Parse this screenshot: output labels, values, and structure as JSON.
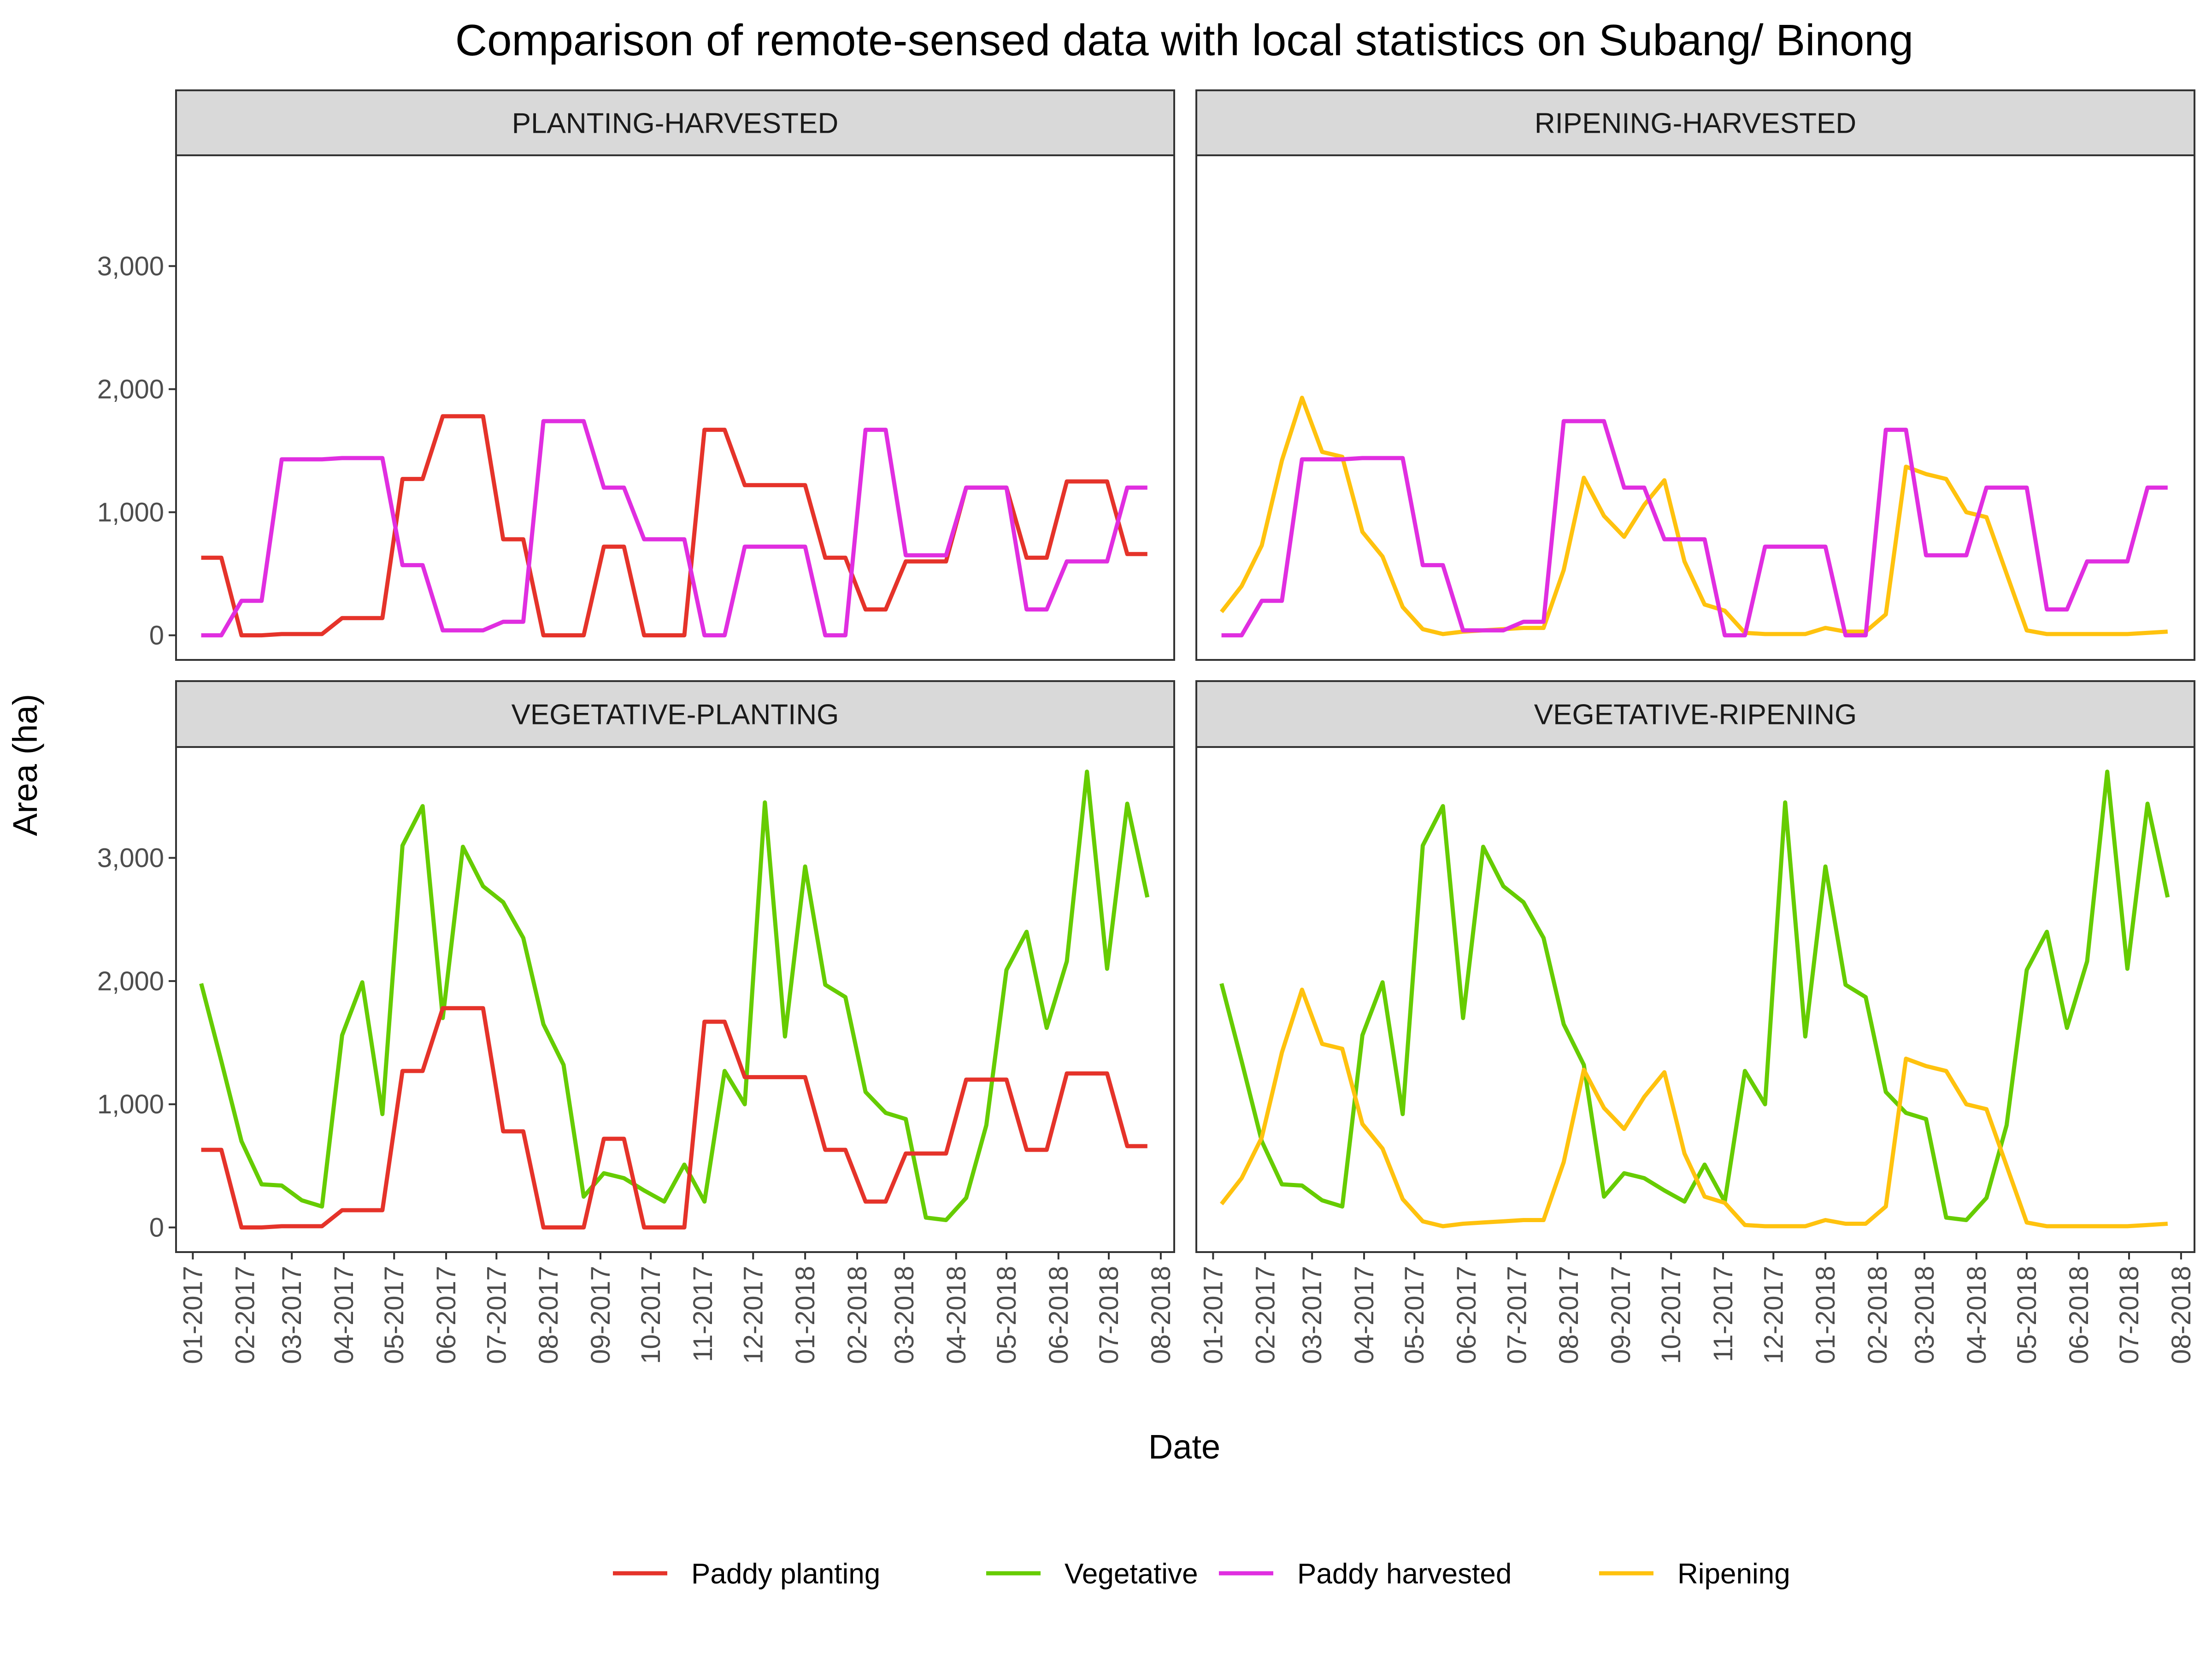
{
  "chart_data": {
    "type": "line",
    "title": "Comparison of remote-sensed data with local statistics on Subang/ Binong",
    "xlabel": "Date",
    "ylabel": "Area (ha)",
    "ylim": [
      -200,
      3900
    ],
    "y_ticks": [
      0,
      1000,
      2000,
      3000
    ],
    "y_tick_labels": [
      "0",
      "1,000",
      "2,000",
      "3,000"
    ],
    "x_ticks": [
      "2017-01-01",
      "2017-02-01",
      "2017-03-01",
      "2017-04-01",
      "2017-05-01",
      "2017-06-01",
      "2017-07-01",
      "2017-08-01",
      "2017-09-01",
      "2017-10-01",
      "2017-11-01",
      "2017-12-01",
      "2018-01-01",
      "2018-02-01",
      "2018-03-01",
      "2018-04-01",
      "2018-05-01",
      "2018-06-01",
      "2018-07-01",
      "2018-08-01"
    ],
    "x_tick_labels": [
      "01-2017",
      "02-2017",
      "03-2017",
      "04-2017",
      "05-2017",
      "06-2017",
      "07-2017",
      "08-2017",
      "09-2017",
      "10-2017",
      "11-2017",
      "12-2017",
      "01-2018",
      "02-2018",
      "03-2018",
      "04-2018",
      "05-2018",
      "06-2018",
      "07-2018",
      "08-2018"
    ],
    "xlim": [
      "2016-12-22",
      "2018-08-09"
    ],
    "grid": false,
    "legend_position": "bottom",
    "legend": [
      "Paddy planting",
      "Vegetative",
      "Paddy harvested",
      "Ripening"
    ],
    "colors": {
      "Paddy planting": "#e5332a",
      "Vegetative": "#66cc00",
      "Paddy harvested": "#e02ee0",
      "Ripening": "#ffc20e"
    },
    "series": [
      {
        "name": "Paddy planting",
        "x": [
          "2017-01-06",
          "2017-01-18",
          "2017-01-30",
          "2017-02-11",
          "2017-02-23",
          "2017-03-07",
          "2017-03-19",
          "2017-03-31",
          "2017-04-12",
          "2017-04-24",
          "2017-05-06",
          "2017-05-18",
          "2017-05-30",
          "2017-06-11",
          "2017-06-23",
          "2017-07-05",
          "2017-07-17",
          "2017-07-29",
          "2017-08-10",
          "2017-08-22",
          "2017-09-03",
          "2017-09-15",
          "2017-09-27",
          "2017-10-09",
          "2017-10-21",
          "2017-11-02",
          "2017-11-14",
          "2017-11-26",
          "2017-12-08",
          "2017-12-20",
          "2018-01-01",
          "2018-01-13",
          "2018-01-25",
          "2018-02-06",
          "2018-02-18",
          "2018-03-02",
          "2018-03-14",
          "2018-03-26",
          "2018-04-07",
          "2018-04-19",
          "2018-05-01",
          "2018-05-13",
          "2018-05-25",
          "2018-06-06",
          "2018-06-18",
          "2018-06-30",
          "2018-07-12",
          "2018-07-24"
        ],
        "y": [
          630,
          630,
          0,
          0,
          10,
          10,
          10,
          140,
          140,
          140,
          1270,
          1270,
          1780,
          1780,
          1780,
          780,
          780,
          0,
          0,
          0,
          720,
          720,
          0,
          0,
          0,
          1670,
          1670,
          1220,
          1220,
          1220,
          1220,
          630,
          630,
          210,
          210,
          600,
          600,
          600,
          1200,
          1200,
          1200,
          630,
          630,
          1250,
          1250,
          1250,
          660,
          660
        ]
      },
      {
        "name": "Vegetative",
        "x": [
          "2017-01-06",
          "2017-01-18",
          "2017-01-30",
          "2017-02-11",
          "2017-02-23",
          "2017-03-07",
          "2017-03-19",
          "2017-03-31",
          "2017-04-12",
          "2017-04-24",
          "2017-05-06",
          "2017-05-18",
          "2017-05-30",
          "2017-06-11",
          "2017-06-23",
          "2017-07-05",
          "2017-07-17",
          "2017-07-29",
          "2017-08-10",
          "2017-08-22",
          "2017-09-03",
          "2017-09-15",
          "2017-09-27",
          "2017-10-09",
          "2017-10-21",
          "2017-11-02",
          "2017-11-14",
          "2017-11-26",
          "2017-12-08",
          "2017-12-20",
          "2018-01-01",
          "2018-01-13",
          "2018-01-25",
          "2018-02-06",
          "2018-02-18",
          "2018-03-02",
          "2018-03-14",
          "2018-03-26",
          "2018-04-07",
          "2018-04-19",
          "2018-05-01",
          "2018-05-13",
          "2018-05-25",
          "2018-06-06",
          "2018-06-18",
          "2018-06-30",
          "2018-07-12",
          "2018-07-24"
        ],
        "y": [
          1980,
          1350,
          700,
          350,
          340,
          220,
          170,
          1560,
          1990,
          920,
          3100,
          3420,
          1700,
          3090,
          2770,
          2640,
          2350,
          1650,
          1320,
          250,
          440,
          400,
          300,
          210,
          510,
          210,
          1270,
          1000,
          3450,
          1550,
          2930,
          1970,
          1870,
          1100,
          930,
          880,
          80,
          60,
          240,
          830,
          2090,
          2400,
          1620,
          2160,
          3700,
          2100,
          3440,
          2680
        ]
      },
      {
        "name": "Paddy harvested",
        "x": [
          "2017-01-06",
          "2017-01-18",
          "2017-01-30",
          "2017-02-11",
          "2017-02-23",
          "2017-03-07",
          "2017-03-19",
          "2017-03-31",
          "2017-04-12",
          "2017-04-24",
          "2017-05-06",
          "2017-05-18",
          "2017-05-30",
          "2017-06-11",
          "2017-06-23",
          "2017-07-05",
          "2017-07-17",
          "2017-07-29",
          "2017-08-10",
          "2017-08-22",
          "2017-09-03",
          "2017-09-15",
          "2017-09-27",
          "2017-10-09",
          "2017-10-21",
          "2017-11-02",
          "2017-11-14",
          "2017-11-26",
          "2017-12-08",
          "2017-12-20",
          "2018-01-01",
          "2018-01-13",
          "2018-01-25",
          "2018-02-06",
          "2018-02-18",
          "2018-03-02",
          "2018-03-14",
          "2018-03-26",
          "2018-04-07",
          "2018-04-19",
          "2018-05-01",
          "2018-05-13",
          "2018-05-25",
          "2018-06-06",
          "2018-06-18",
          "2018-06-30",
          "2018-07-12",
          "2018-07-24"
        ],
        "y": [
          0,
          0,
          280,
          280,
          1430,
          1430,
          1430,
          1440,
          1440,
          1440,
          570,
          570,
          40,
          40,
          40,
          110,
          110,
          1740,
          1740,
          1740,
          1200,
          1200,
          780,
          780,
          780,
          0,
          0,
          720,
          720,
          720,
          720,
          0,
          0,
          1670,
          1670,
          650,
          650,
          650,
          1200,
          1200,
          1200,
          210,
          210,
          600,
          600,
          600,
          1200,
          1200
        ]
      },
      {
        "name": "Ripening",
        "x": [
          "2017-01-06",
          "2017-01-18",
          "2017-01-30",
          "2017-02-11",
          "2017-02-23",
          "2017-03-07",
          "2017-03-19",
          "2017-03-31",
          "2017-04-12",
          "2017-04-24",
          "2017-05-06",
          "2017-05-18",
          "2017-05-30",
          "2017-06-11",
          "2017-06-23",
          "2017-07-05",
          "2017-07-17",
          "2017-07-29",
          "2017-08-10",
          "2017-08-22",
          "2017-09-03",
          "2017-09-15",
          "2017-09-27",
          "2017-10-09",
          "2017-10-21",
          "2017-11-02",
          "2017-11-14",
          "2017-11-26",
          "2017-12-08",
          "2017-12-20",
          "2018-01-01",
          "2018-01-13",
          "2018-01-25",
          "2018-02-06",
          "2018-02-18",
          "2018-03-02",
          "2018-03-14",
          "2018-03-26",
          "2018-04-07",
          "2018-04-19",
          "2018-05-01",
          "2018-05-13",
          "2018-05-25",
          "2018-06-06",
          "2018-06-18",
          "2018-06-30",
          "2018-07-12",
          "2018-07-24"
        ],
        "y": [
          190,
          400,
          730,
          1420,
          1930,
          1490,
          1450,
          840,
          640,
          230,
          50,
          10,
          30,
          40,
          50,
          60,
          60,
          530,
          1280,
          970,
          800,
          1060,
          1260,
          600,
          250,
          200,
          20,
          10,
          10,
          10,
          60,
          30,
          30,
          170,
          1370,
          1310,
          1270,
          1000,
          960,
          500,
          40,
          10,
          10,
          10,
          10,
          10,
          20,
          30
        ]
      }
    ],
    "panels": [
      {
        "label": "PLANTING-HARVESTED",
        "series": [
          "Paddy planting",
          "Paddy harvested"
        ]
      },
      {
        "label": "RIPENING-HARVESTED",
        "series": [
          "Ripening",
          "Paddy harvested"
        ]
      },
      {
        "label": "VEGETATIVE-PLANTING",
        "series": [
          "Vegetative",
          "Paddy planting"
        ]
      },
      {
        "label": "VEGETATIVE-RIPENING",
        "series": [
          "Vegetative",
          "Ripening"
        ]
      }
    ]
  }
}
